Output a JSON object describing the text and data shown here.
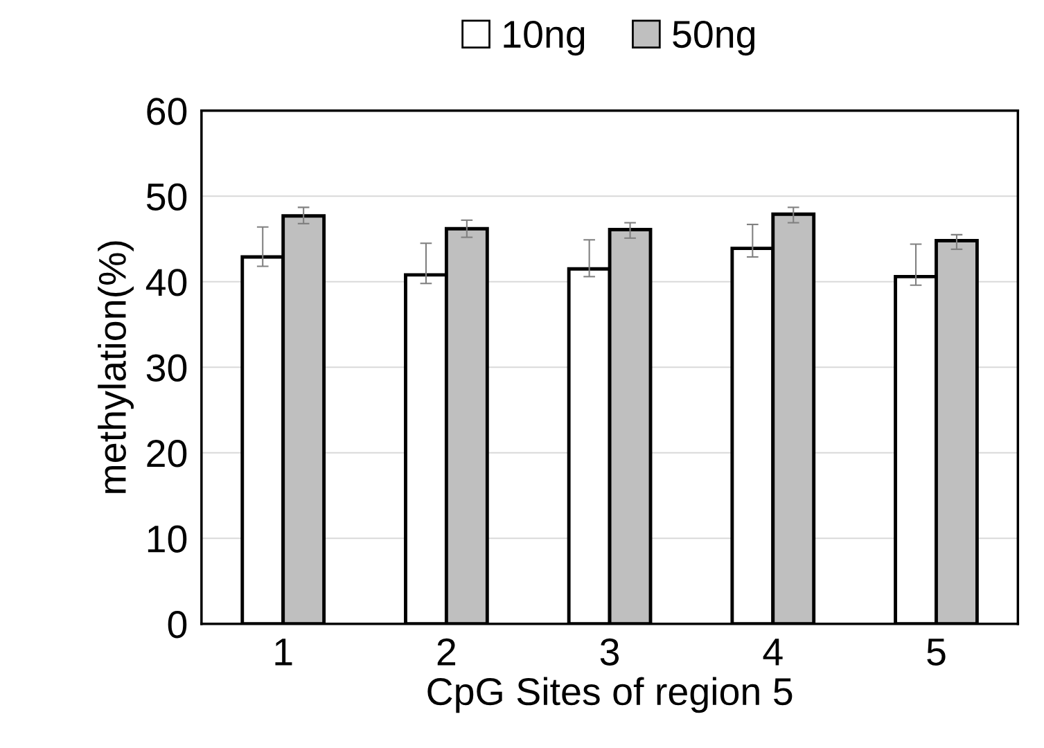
{
  "chart_data": {
    "type": "bar",
    "xlabel": "CpG Sites of region 5",
    "ylabel": "methylation(%)",
    "categories": [
      "1",
      "2",
      "3",
      "4",
      "5"
    ],
    "series": [
      {
        "name": "10ng",
        "color": "#ffffff",
        "values": [
          42.9,
          40.8,
          41.5,
          43.9,
          40.6
        ],
        "errors": [
          [
            41.8,
            46.4
          ],
          [
            39.8,
            44.5
          ],
          [
            40.6,
            44.9
          ],
          [
            42.9,
            46.7
          ],
          [
            39.6,
            44.4
          ]
        ]
      },
      {
        "name": "50ng",
        "color": "#bfbfbf",
        "values": [
          47.7,
          46.2,
          46.1,
          47.9,
          44.8
        ],
        "errors": [
          [
            46.8,
            48.7
          ],
          [
            45.2,
            47.2
          ],
          [
            45.1,
            46.9
          ],
          [
            46.9,
            48.7
          ],
          [
            43.8,
            45.5
          ]
        ]
      }
    ],
    "ylim": [
      0,
      60
    ],
    "yticks": [
      0,
      10,
      20,
      30,
      40,
      50,
      60
    ],
    "grid": "y",
    "legend": "top"
  }
}
